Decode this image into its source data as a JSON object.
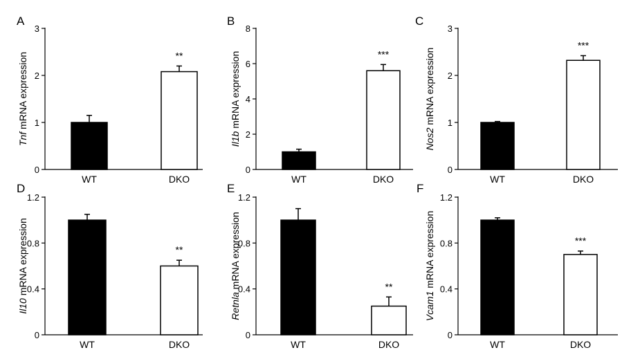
{
  "chart_data": [
    {
      "type": "bar",
      "panel": "A",
      "gene": "Tnf",
      "ylabel_suffix": " mRNA expression",
      "categories": [
        "WT",
        "DKO"
      ],
      "values": [
        1.0,
        2.08
      ],
      "errors": [
        0.15,
        0.12
      ],
      "significance": [
        "",
        "**"
      ],
      "colors": [
        "#000000",
        "#ffffff"
      ],
      "ylim": [
        0,
        3
      ],
      "yticks": [
        "0",
        "1",
        "2",
        "3"
      ]
    },
    {
      "type": "bar",
      "panel": "B",
      "gene": "Il1b",
      "ylabel_suffix": " mRNA expression",
      "categories": [
        "WT",
        "DKO"
      ],
      "values": [
        1.0,
        5.6
      ],
      "errors": [
        0.15,
        0.35
      ],
      "significance": [
        "",
        "***"
      ],
      "colors": [
        "#000000",
        "#ffffff"
      ],
      "ylim": [
        0,
        8
      ],
      "yticks": [
        "0",
        "2",
        "4",
        "6",
        "8"
      ]
    },
    {
      "type": "bar",
      "panel": "C",
      "gene": "Nos2",
      "ylabel_suffix": " mRNA expression",
      "categories": [
        "WT",
        "DKO"
      ],
      "values": [
        1.0,
        2.32
      ],
      "errors": [
        0.02,
        0.1
      ],
      "significance": [
        "",
        "***"
      ],
      "colors": [
        "#000000",
        "#ffffff"
      ],
      "ylim": [
        0,
        3
      ],
      "yticks": [
        "0",
        "1",
        "2",
        "3"
      ]
    },
    {
      "type": "bar",
      "panel": "D",
      "gene": "Il10",
      "ylabel_suffix": " mRNA expression",
      "categories": [
        "WT",
        "DKO"
      ],
      "values": [
        1.0,
        0.6
      ],
      "errors": [
        0.05,
        0.05
      ],
      "significance": [
        "",
        "**"
      ],
      "colors": [
        "#000000",
        "#ffffff"
      ],
      "ylim": [
        0,
        1.2
      ],
      "yticks": [
        "0",
        "0.4",
        "0.8",
        "1.2"
      ]
    },
    {
      "type": "bar",
      "panel": "E",
      "gene": "Retnla",
      "ylabel_suffix": " mRNA expression",
      "categories": [
        "WT",
        "DKO"
      ],
      "values": [
        1.0,
        0.25
      ],
      "errors": [
        0.1,
        0.08
      ],
      "significance": [
        "",
        "**"
      ],
      "colors": [
        "#000000",
        "#ffffff"
      ],
      "ylim": [
        0,
        1.2
      ],
      "yticks": [
        "0",
        "0.4",
        "0.8",
        "1.2"
      ]
    },
    {
      "type": "bar",
      "panel": "F",
      "gene": "Vcam1",
      "ylabel_suffix": " mRNA expression",
      "categories": [
        "WT",
        "DKO"
      ],
      "values": [
        1.0,
        0.7
      ],
      "errors": [
        0.02,
        0.03
      ],
      "significance": [
        "",
        "***"
      ],
      "colors": [
        "#000000",
        "#ffffff"
      ],
      "ylim": [
        0,
        1.2
      ],
      "yticks": [
        "0",
        "0.4",
        "0.8",
        "1.2"
      ]
    }
  ]
}
